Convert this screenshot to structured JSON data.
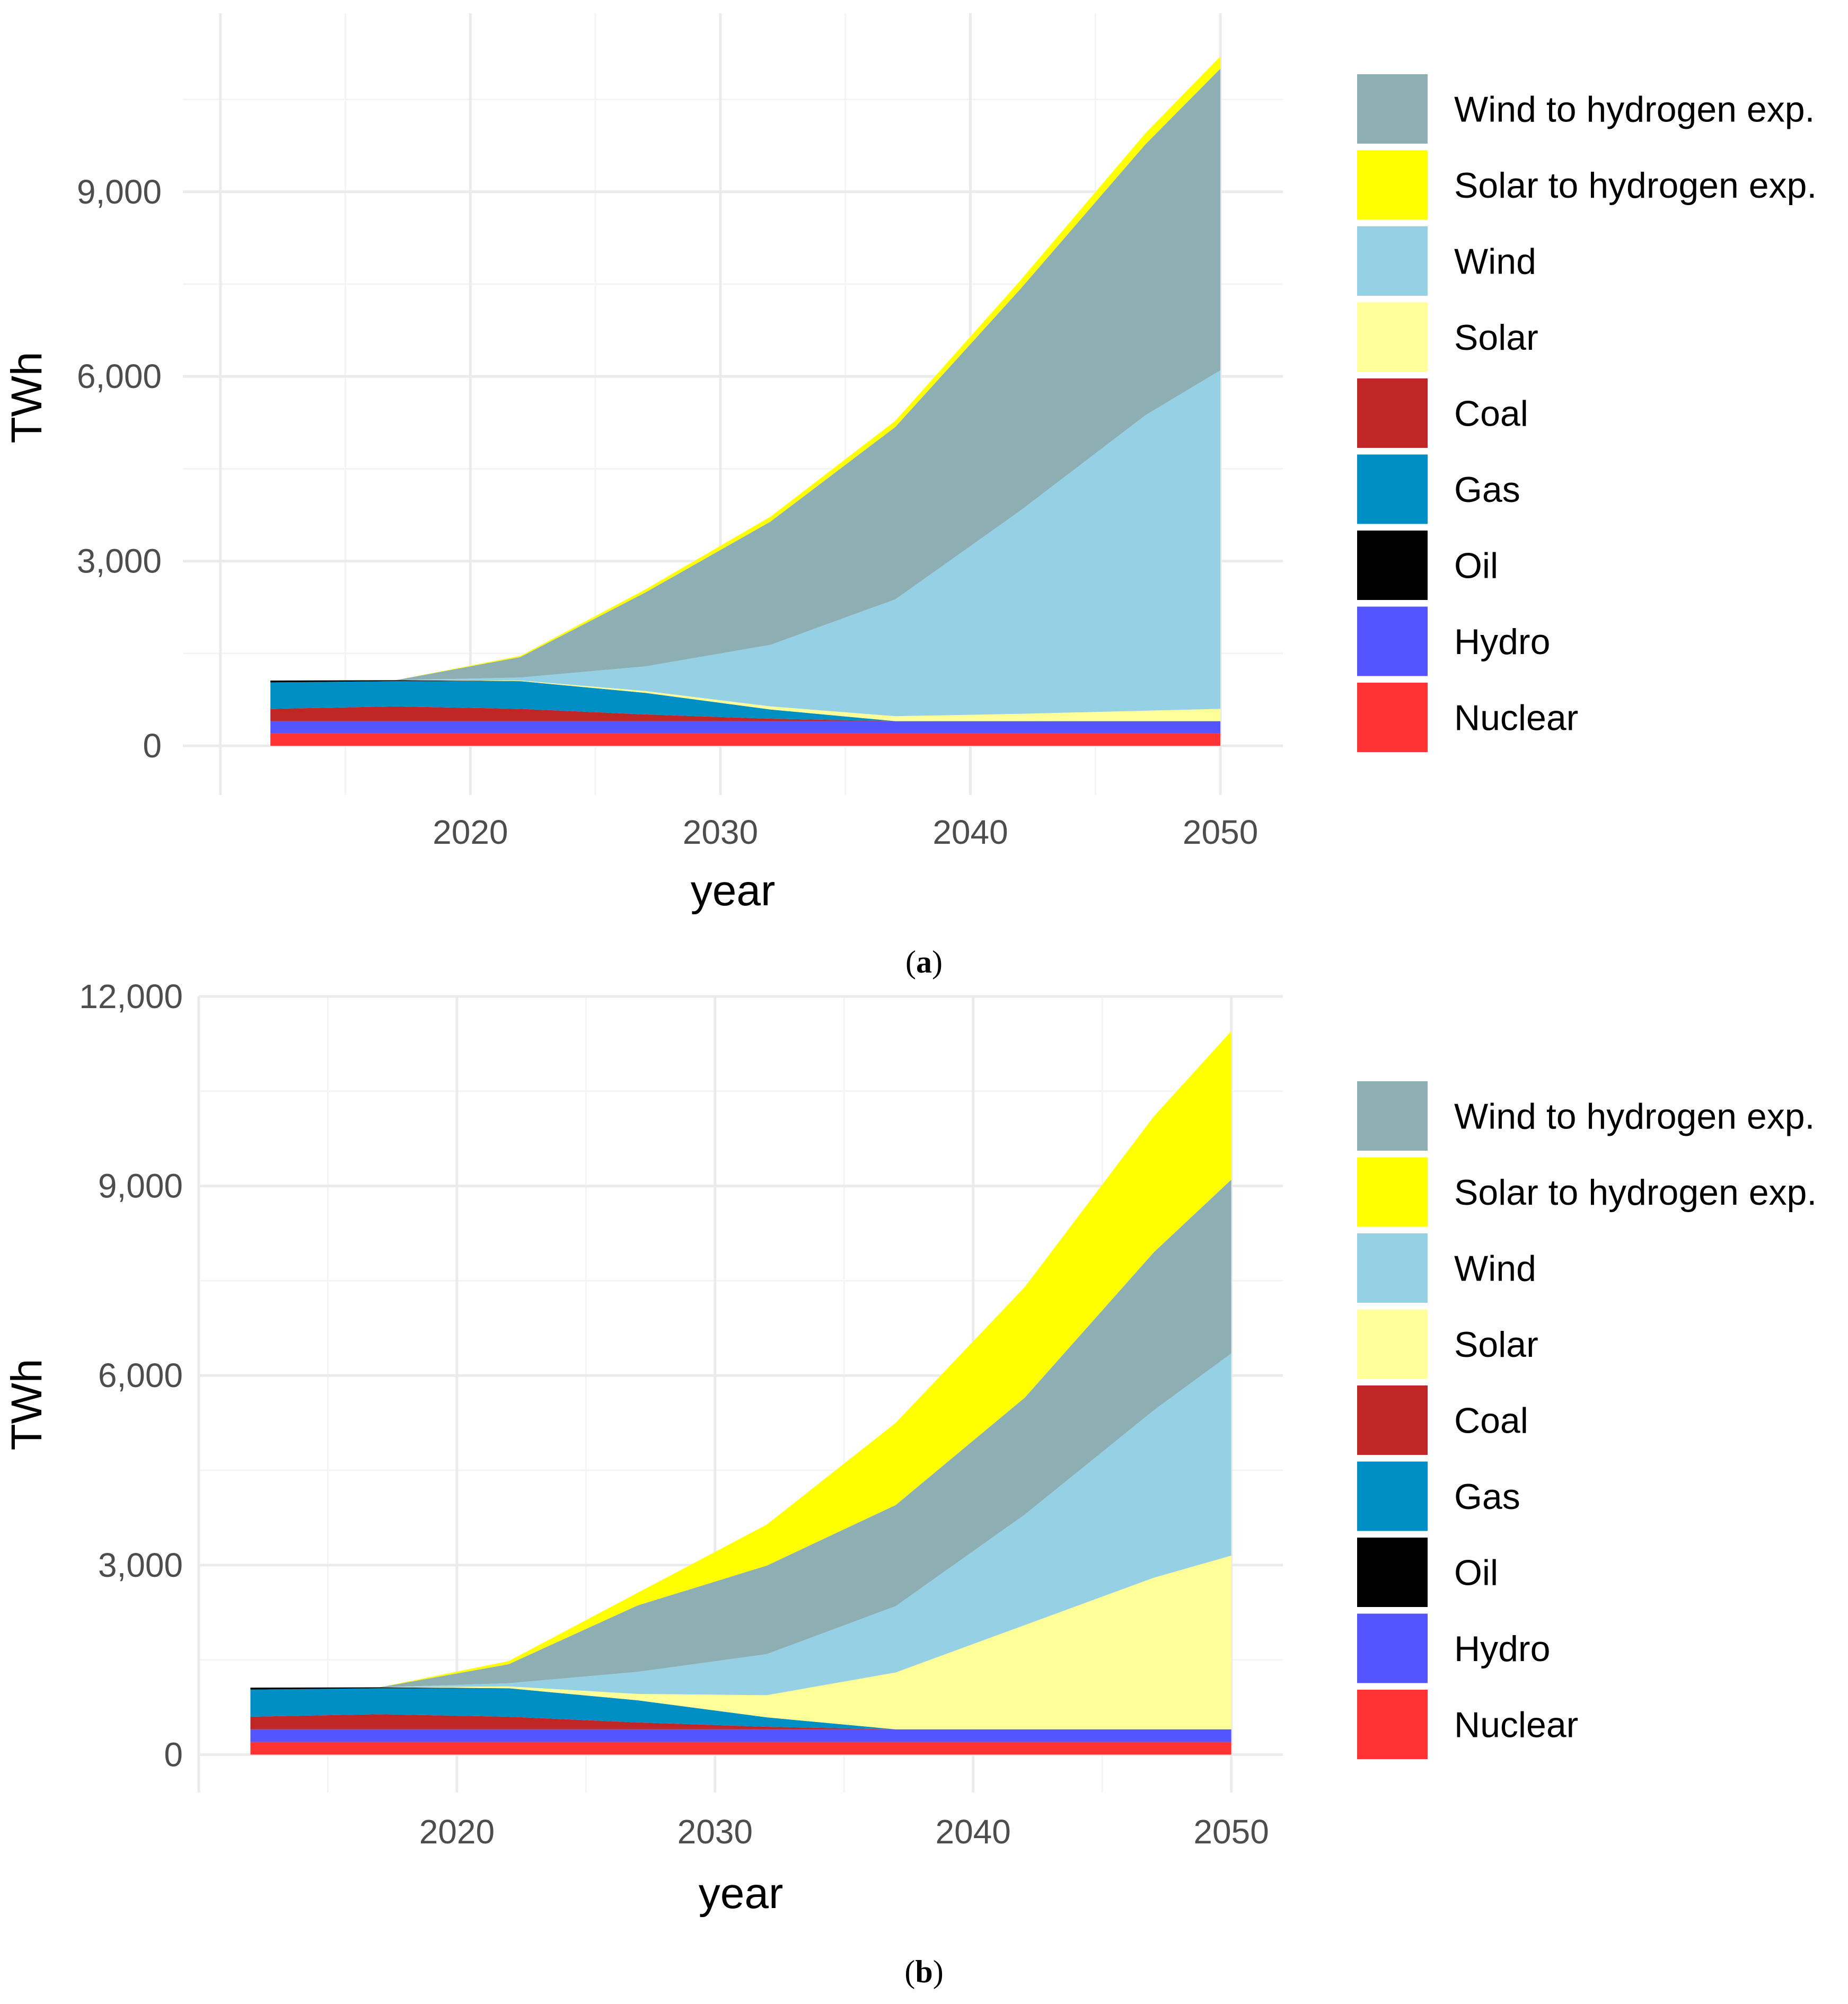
{
  "colors": {
    "Nuclear": "#ff3333",
    "Hydro": "#5555ff",
    "Oil": "#000000",
    "Gas": "#008fc4",
    "Coal": "#c02626",
    "Solar": "#ffff99",
    "Wind": "#96d0e4",
    "Solar to hydrogen exp.": "#ffff00",
    "Wind to hydrogen exp.": "#8daeb3"
  },
  "chart_data": [
    {
      "type": "area",
      "stacked": true,
      "panel": "(a)",
      "panel_letter": "a",
      "xlabel": "year",
      "ylabel": "TWh",
      "xlim": [
        2008.5,
        2052.5
      ],
      "ylim": [
        -800,
        11900
      ],
      "x_ticks": [
        2020,
        2030,
        2040,
        2050
      ],
      "x_tick_labels": [
        "2020",
        "2030",
        "2040",
        "2050"
      ],
      "y_ticks": [
        0,
        3000,
        6000,
        9000
      ],
      "y_tick_labels": [
        "0",
        "3,000",
        "6,000",
        "9,000"
      ],
      "legend_position": "right",
      "legend_entries": [
        "Wind to hydrogen exp.",
        "Solar to hydrogen exp.",
        "Wind",
        "Solar",
        "Coal",
        "Gas",
        "Oil",
        "Hydro",
        "Nuclear"
      ],
      "x": [
        2012,
        2017,
        2022,
        2027,
        2032,
        2037,
        2042,
        2047,
        2050
      ],
      "series": [
        {
          "name": "Nuclear",
          "values": [
            200,
            200,
            200,
            200,
            200,
            200,
            200,
            200,
            200
          ]
        },
        {
          "name": "Hydro",
          "values": [
            200,
            200,
            200,
            200,
            200,
            200,
            200,
            200,
            200
          ]
        },
        {
          "name": "Coal",
          "values": [
            200,
            240,
            200,
            110,
            40,
            0,
            0,
            0,
            0
          ]
        },
        {
          "name": "Gas",
          "values": [
            430,
            410,
            450,
            350,
            150,
            0,
            0,
            0,
            0
          ]
        },
        {
          "name": "Oil",
          "values": [
            30,
            15,
            0,
            0,
            0,
            0,
            0,
            0,
            0
          ]
        },
        {
          "name": "Solar",
          "values": [
            0,
            0,
            10,
            30,
            50,
            80,
            120,
            170,
            200
          ]
        },
        {
          "name": "Wind",
          "values": [
            0,
            0,
            50,
            400,
            1000,
            1900,
            3300,
            4800,
            5500
          ]
        },
        {
          "name": "Wind to hydrogen exp.",
          "values": [
            0,
            0,
            330,
            1200,
            2000,
            2800,
            3600,
            4400,
            4900
          ]
        },
        {
          "name": "Solar to hydrogen exp.",
          "values": [
            0,
            0,
            20,
            50,
            80,
            100,
            140,
            180,
            200
          ]
        }
      ]
    },
    {
      "type": "area",
      "stacked": true,
      "panel": "(b)",
      "panel_letter": "b",
      "xlabel": "year",
      "ylabel": "TWh",
      "xlim": [
        2010,
        2052
      ],
      "ylim": [
        -600,
        12000
      ],
      "x_ticks": [
        2020,
        2030,
        2040,
        2050
      ],
      "x_tick_labels": [
        "2020",
        "2030",
        "2040",
        "2050"
      ],
      "y_ticks": [
        0,
        3000,
        6000,
        9000,
        12000
      ],
      "y_tick_labels": [
        "0",
        "3,000",
        "6,000",
        "9,000",
        "12,000"
      ],
      "legend_position": "right",
      "legend_entries": [
        "Wind to hydrogen exp.",
        "Solar to hydrogen exp.",
        "Wind",
        "Solar",
        "Coal",
        "Gas",
        "Oil",
        "Hydro",
        "Nuclear"
      ],
      "x": [
        2012,
        2017,
        2022,
        2027,
        2032,
        2037,
        2042,
        2047,
        2050
      ],
      "series": [
        {
          "name": "Nuclear",
          "values": [
            200,
            200,
            200,
            200,
            200,
            200,
            200,
            200,
            200
          ]
        },
        {
          "name": "Hydro",
          "values": [
            200,
            200,
            200,
            200,
            200,
            200,
            200,
            200,
            200
          ]
        },
        {
          "name": "Coal",
          "values": [
            200,
            240,
            200,
            110,
            40,
            0,
            0,
            0,
            0
          ]
        },
        {
          "name": "Gas",
          "values": [
            430,
            410,
            450,
            350,
            150,
            0,
            0,
            0,
            0
          ]
        },
        {
          "name": "Oil",
          "values": [
            30,
            15,
            0,
            0,
            0,
            0,
            0,
            0,
            0
          ]
        },
        {
          "name": "Solar",
          "values": [
            0,
            0,
            30,
            100,
            350,
            900,
            1650,
            2400,
            2750
          ]
        },
        {
          "name": "Wind",
          "values": [
            0,
            0,
            50,
            350,
            650,
            1050,
            1750,
            2650,
            3200
          ]
        },
        {
          "name": "Wind to hydrogen exp.",
          "values": [
            0,
            0,
            300,
            1050,
            1400,
            1600,
            1850,
            2500,
            2750
          ]
        },
        {
          "name": "Solar to hydrogen exp.",
          "values": [
            0,
            0,
            50,
            200,
            650,
            1300,
            1750,
            2150,
            2350
          ]
        }
      ]
    }
  ]
}
